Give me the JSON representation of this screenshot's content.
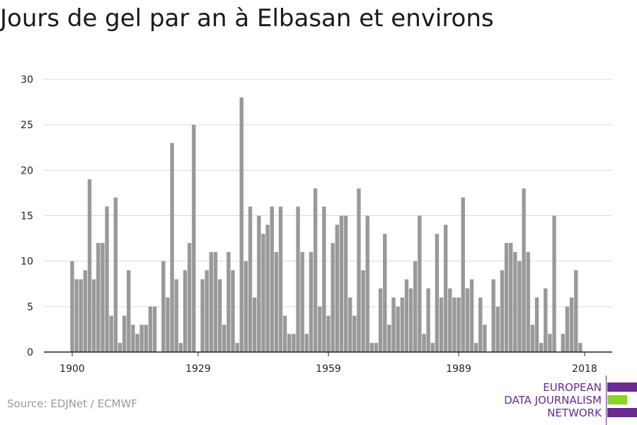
{
  "chart_data": {
    "type": "bar",
    "title": "Jours de gel par an à Elbasan et environs",
    "xlabel": "",
    "ylabel": "",
    "x_start": 1900,
    "x_end": 2018,
    "x_ticks": [
      "1900",
      "1929",
      "1959",
      "1989",
      "2018"
    ],
    "y_ticks": [
      "0",
      "5",
      "10",
      "15",
      "20",
      "25",
      "30"
    ],
    "ylim": [
      0,
      30
    ],
    "grid": true,
    "bar_color": "#999999",
    "values": [
      10,
      8,
      8,
      9,
      19,
      8,
      12,
      12,
      16,
      4,
      17,
      1,
      4,
      9,
      3,
      2,
      3,
      3,
      5,
      5,
      0,
      10,
      6,
      23,
      8,
      1,
      9,
      12,
      25,
      0,
      8,
      9,
      11,
      11,
      8,
      3,
      11,
      9,
      1,
      28,
      10,
      16,
      6,
      15,
      13,
      14,
      16,
      11,
      16,
      4,
      2,
      2,
      16,
      11,
      2,
      11,
      18,
      5,
      16,
      4,
      12,
      14,
      15,
      15,
      6,
      4,
      18,
      9,
      15,
      1,
      1,
      7,
      13,
      3,
      6,
      5,
      6,
      8,
      7,
      10,
      15,
      2,
      7,
      1,
      13,
      6,
      14,
      7,
      6,
      6,
      17,
      7,
      8,
      1,
      6,
      3,
      0,
      8,
      5,
      9,
      12,
      12,
      11,
      10,
      18,
      11,
      3,
      6,
      1,
      7,
      2,
      15,
      0,
      2,
      5,
      6,
      9,
      1
    ]
  },
  "source": "Source: EDJNet / ECMWF",
  "logo": {
    "line1": "EUROPEAN",
    "line2": "DATA JOURNALISM",
    "line3": "NETWORK",
    "purple": "#6a2a8e",
    "green": "#8fd12b"
  }
}
